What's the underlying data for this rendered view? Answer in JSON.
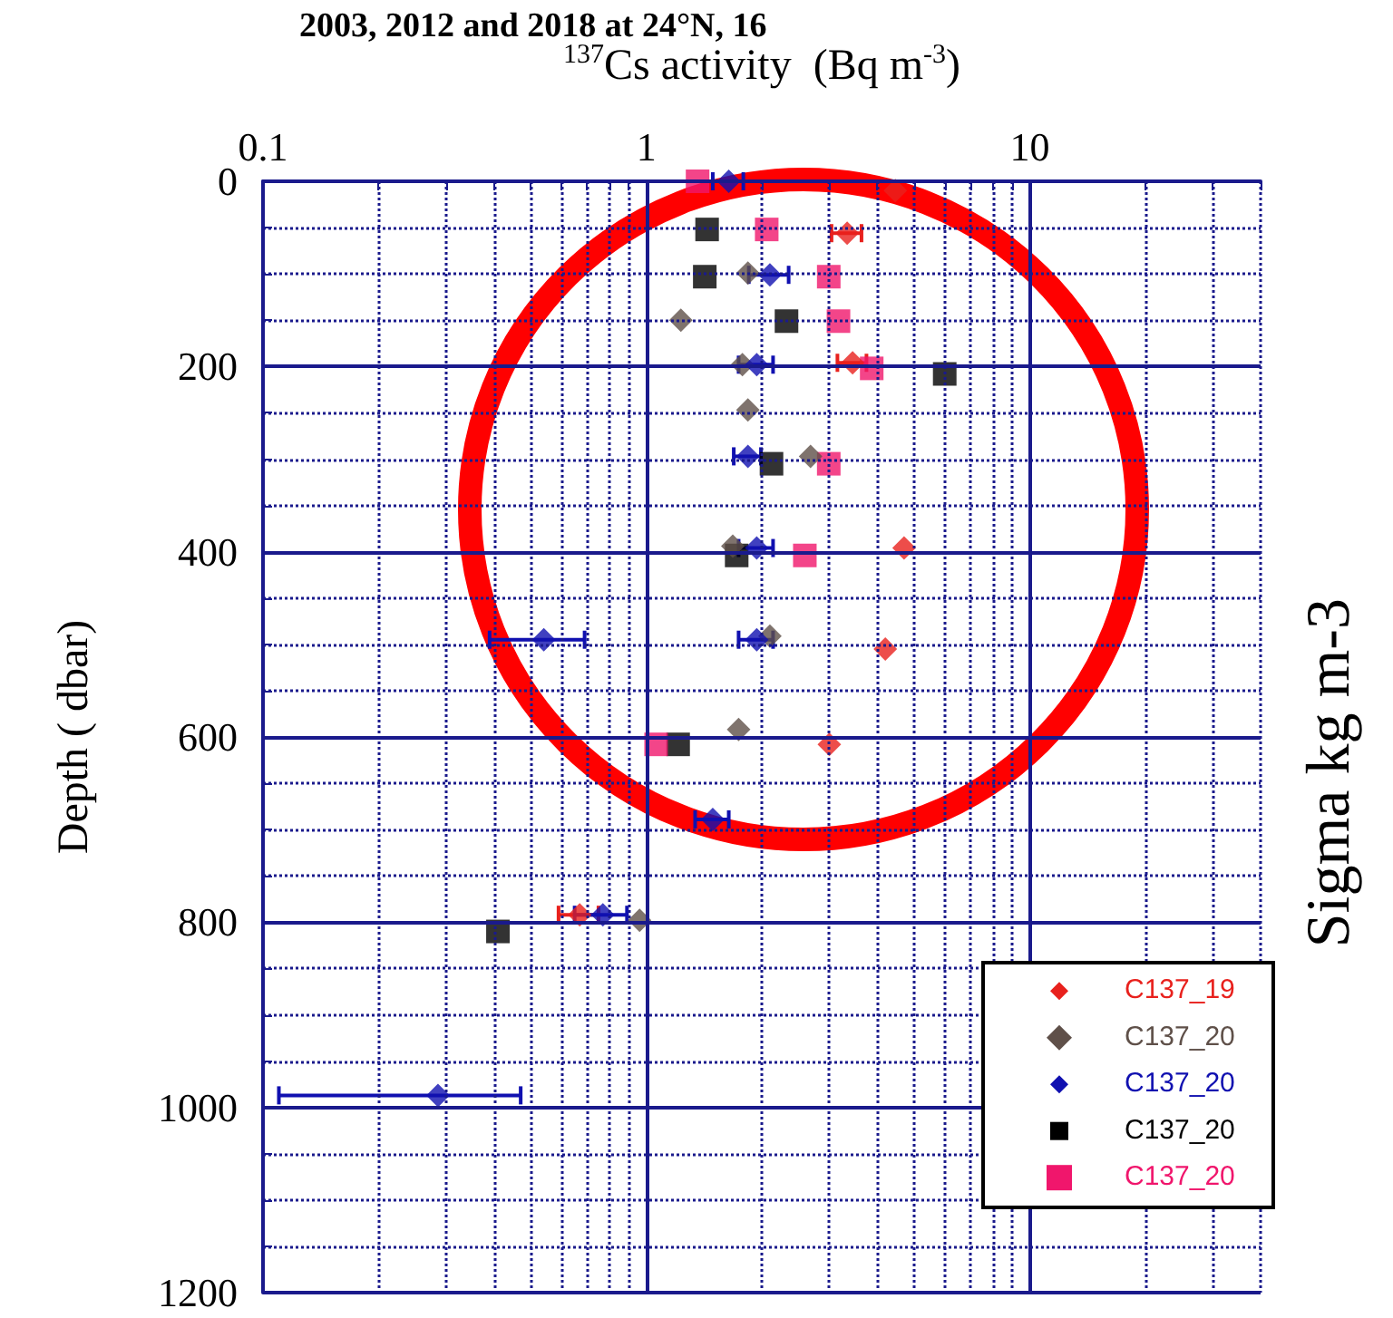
{
  "chart_data": {
    "type": "scatter",
    "title": "2003, 2012 and 2018 at 24°N, 16",
    "xlabel": "$^{137}$Cs activity  (Bq m$^{-3}$)",
    "ylabel": "Depth ( dbar)",
    "y2label": "Sigma kg m-3",
    "xlim": [
      0.1,
      40
    ],
    "xticks": [
      0.1,
      {
        "value": 0.2,
        "label": null
      },
      {
        "value": 0.3,
        "label": null
      },
      {
        "value": 0.4,
        "label": null
      },
      {
        "value": 0.5,
        "label": null
      },
      {
        "value": 0.6,
        "label": null
      },
      {
        "value": 0.7,
        "label": null
      },
      {
        "value": 0.8,
        "label": null
      },
      {
        "value": 0.9,
        "label": null
      },
      1,
      {
        "value": 2,
        "label": null
      },
      {
        "value": 3,
        "label": null
      },
      {
        "value": 4,
        "label": null
      },
      {
        "value": 5,
        "label": null
      },
      {
        "value": 6,
        "label": null
      },
      {
        "value": 7,
        "label": null
      },
      {
        "value": 8,
        "label": null
      },
      {
        "value": 9,
        "label": null
      },
      10,
      {
        "value": 20,
        "label": null
      },
      {
        "value": 30,
        "label": null
      },
      {
        "value": 40,
        "label": null
      }
    ],
    "ylim": [
      1200,
      0
    ],
    "yticks": [
      0,
      {
        "value": 50,
        "label": null
      },
      {
        "value": 100,
        "label": null
      },
      {
        "value": 150,
        "label": null
      },
      200,
      {
        "value": 250,
        "label": null
      },
      {
        "value": 300,
        "label": null
      },
      {
        "value": 350,
        "label": null
      },
      400,
      {
        "value": 450,
        "label": null
      },
      {
        "value": 500,
        "label": null
      },
      {
        "value": 550,
        "label": null
      },
      600,
      {
        "value": 650,
        "label": null
      },
      {
        "value": 700,
        "label": null
      },
      {
        "value": 750,
        "label": null
      },
      800,
      {
        "value": 850,
        "label": null
      },
      {
        "value": 900,
        "label": null
      },
      {
        "value": 950,
        "label": null
      },
      1000,
      {
        "value": 1050,
        "label": null
      },
      {
        "value": 1100,
        "label": null
      },
      {
        "value": 1150,
        "label": null
      },
      1200
    ],
    "log": "x",
    "grid": true,
    "legend": "bottom right",
    "series": [
      {
        "name": "C137_19",
        "color": "#e8211d",
        "marker": "diamond",
        "x": [
          4.46,
          3.34,
          3.45,
          4.7,
          4.2,
          3.0,
          0.67
        ],
        "values": [
          10,
          56,
          196,
          396,
          505,
          608,
          792
        ],
        "xerrors": [
          null,
          0.3,
          0.3,
          null,
          null,
          null,
          0.08
        ]
      },
      {
        "name": "C137_20",
        "color": "#5f5049",
        "marker": "diamond",
        "x": [
          1.84,
          1.23,
          1.78,
          1.84,
          2.68,
          1.68,
          2.1,
          1.74,
          0.96
        ],
        "values": [
          99,
          150,
          198,
          247,
          297,
          394,
          491,
          592,
          798
        ]
      },
      {
        "name": "C137_20",
        "color": "#1010b0",
        "marker": "diamond",
        "x": [
          1.64,
          2.1,
          1.94,
          1.84,
          1.94,
          0.54,
          1.94,
          1.49,
          0.77,
          0.286
        ],
        "values": [
          0,
          101,
          198,
          297,
          396,
          495,
          495,
          689,
          792,
          987
        ],
        "xerrors": [
          0.15,
          0.25,
          0.2,
          0.15,
          0.2,
          0.15,
          0.2,
          0.15,
          0.12,
          [
            0.11,
            0.47
          ]
        ]
      },
      {
        "name": "C137_20",
        "color": "#000000",
        "marker": "square",
        "x": [
          1.44,
          1.42,
          2.32,
          6.0,
          2.12,
          1.72,
          1.21,
          0.41
        ],
        "values": [
          52,
          103,
          151,
          208,
          305,
          404,
          608,
          810
        ]
      },
      {
        "name": "C137_20",
        "color": "#f0166c",
        "marker": "square",
        "x": [
          1.36,
          2.06,
          2.99,
          3.17,
          3.87,
          2.99,
          2.59,
          1.06
        ],
        "values": [
          0,
          52,
          103,
          151,
          202,
          305,
          404,
          608
        ]
      }
    ]
  }
}
